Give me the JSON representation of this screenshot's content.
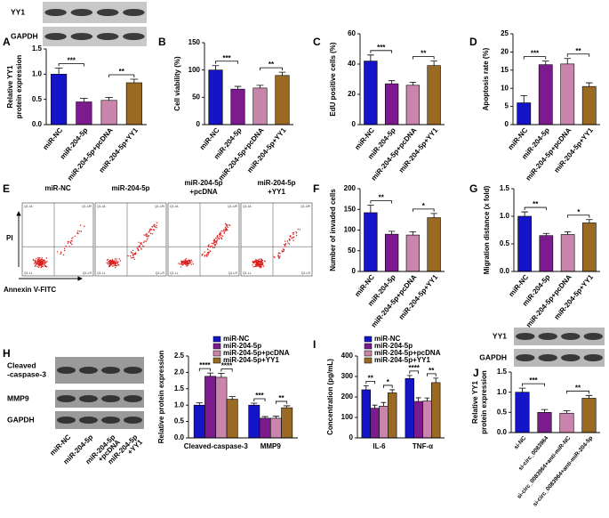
{
  "chart_data": [
    {
      "panel": "A",
      "type": "bar",
      "ylabel": [
        "Relative YY1",
        "protein expression"
      ],
      "categories": [
        "miR-NC",
        "miR-204-5p",
        "miR-204-5p+pcDNA",
        "miR-204-5p+YY1"
      ],
      "values": [
        1.0,
        0.45,
        0.48,
        0.83
      ],
      "errors": [
        0.12,
        0.07,
        0.06,
        0.07
      ],
      "colors": [
        "#1414c8",
        "#7b1b8e",
        "#c985ab",
        "#9a6a24"
      ],
      "ylim": [
        0,
        1.5
      ],
      "yticks": [
        {
          "value": 0,
          "label": "0.0"
        },
        0.5,
        {
          "value": 1,
          "label": "1.0"
        },
        1.5
      ],
      "annotations": [
        "***",
        "**"
      ]
    },
    {
      "panel": "B",
      "type": "bar",
      "ylabel": [
        "Cell viability (%)"
      ],
      "categories": [
        "miR-NC",
        "miR-204-5p",
        "miR-204-5p+pcDNA",
        "miR-204-5p+YY1"
      ],
      "values": [
        100,
        65,
        67,
        90
      ],
      "errors": [
        8,
        5,
        5,
        6
      ],
      "colors": [
        "#1414c8",
        "#7b1b8e",
        "#c985ab",
        "#9a6a24"
      ],
      "ylim": [
        0,
        150
      ],
      "yticks": [
        0,
        50,
        100,
        150
      ],
      "annotations": [
        "***",
        "**"
      ]
    },
    {
      "panel": "C",
      "type": "bar",
      "ylabel": [
        "EdU positive cells (%)"
      ],
      "categories": [
        "miR-NC",
        "miR-204-5p",
        "miR-204-5p+pcDNA",
        "miR-204-5p+YY1"
      ],
      "values": [
        42,
        27,
        26,
        39
      ],
      "errors": [
        4,
        2,
        2,
        3
      ],
      "colors": [
        "#1414c8",
        "#7b1b8e",
        "#c985ab",
        "#9a6a24"
      ],
      "ylim": [
        0,
        60
      ],
      "yticks": [
        0,
        20,
        40,
        60
      ],
      "annotations": [
        "***",
        "**"
      ]
    },
    {
      "panel": "D",
      "type": "bar",
      "ylabel": [
        "Apoptosis rate (%)"
      ],
      "categories": [
        "miR-NC",
        "miR-204-5p",
        "miR-204-5p+pcDNA",
        "miR-204-5p+YY1"
      ],
      "values": [
        6,
        16.5,
        16.7,
        10.5
      ],
      "errors": [
        2,
        1,
        1.5,
        1
      ],
      "colors": [
        "#1414c8",
        "#7b1b8e",
        "#c985ab",
        "#9a6a24"
      ],
      "ylim": [
        0,
        25
      ],
      "yticks": [
        0,
        5,
        10,
        15,
        20,
        25
      ],
      "annotations": [
        "***",
        "**"
      ]
    },
    {
      "panel": "F",
      "type": "bar",
      "ylabel": [
        "Number of invaded cells"
      ],
      "categories": [
        "miR-NC",
        "miR-204-5p",
        "miR-204-5p+pcDNA",
        "miR-204-5p+YY1"
      ],
      "values": [
        142,
        90,
        88,
        130
      ],
      "errors": [
        18,
        7,
        8,
        10
      ],
      "colors": [
        "#1414c8",
        "#7b1b8e",
        "#c985ab",
        "#9a6a24"
      ],
      "ylim": [
        0,
        200
      ],
      "yticks": [
        0,
        50,
        100,
        150,
        200
      ],
      "annotations": [
        "**",
        "*"
      ]
    },
    {
      "panel": "G",
      "type": "bar",
      "ylabel": [
        "Migration distance (x fold)"
      ],
      "categories": [
        "miR-NC",
        "miR-204-5p",
        "miR-204-5p+pcDNA",
        "miR-204-5p+YY1"
      ],
      "values": [
        1.0,
        0.65,
        0.67,
        0.88
      ],
      "errors": [
        0.08,
        0.04,
        0.05,
        0.06
      ],
      "colors": [
        "#1414c8",
        "#7b1b8e",
        "#c985ab",
        "#9a6a24"
      ],
      "ylim": [
        0,
        1.5
      ],
      "yticks": [
        {
          "value": 0,
          "label": "0.0"
        },
        0.5,
        {
          "value": 1,
          "label": "1.0"
        },
        1.5
      ],
      "annotations": [
        "**",
        "*"
      ]
    },
    {
      "panel": "H",
      "type": "bar",
      "ylabel": [
        "Relative protein expression"
      ],
      "categories": [
        "Cleaved-caspase-3",
        "MMP9"
      ],
      "series": [
        {
          "name": "miR-NC",
          "color": "#1414c8",
          "values": [
            1.0,
            1.0
          ],
          "errors": [
            0.07,
            0.06
          ]
        },
        {
          "name": "miR-204-5p",
          "color": "#7b1b8e",
          "values": [
            1.88,
            0.6
          ],
          "errors": [
            0.1,
            0.05
          ]
        },
        {
          "name": "miR-204-5p+pcDNA",
          "color": "#c985ab",
          "values": [
            1.85,
            0.6
          ],
          "errors": [
            0.12,
            0.06
          ]
        },
        {
          "name": "miR-204-5p+YY1",
          "color": "#9a6a24",
          "values": [
            1.18,
            0.92
          ],
          "errors": [
            0.08,
            0.06
          ]
        }
      ],
      "ylim": [
        0,
        2.5
      ],
      "yticks": [
        {
          "value": 0,
          "label": "0.0"
        },
        0.5,
        {
          "value": 1,
          "label": "1.0"
        },
        1.5,
        {
          "value": 2,
          "label": "2.0"
        },
        2.5
      ],
      "annotations": [
        "****",
        "****",
        "***",
        "**"
      ]
    },
    {
      "panel": "I",
      "type": "bar",
      "ylabel": [
        "Concentration (pg/mL)"
      ],
      "categories": [
        "IL-6",
        "TNF-α"
      ],
      "series": [
        {
          "name": "miR-NC",
          "color": "#1414c8",
          "values": [
            235,
            290
          ],
          "errors": [
            20,
            15
          ]
        },
        {
          "name": "miR-204-5p",
          "color": "#7b1b8e",
          "values": [
            145,
            178
          ],
          "errors": [
            15,
            18
          ]
        },
        {
          "name": "miR-204-5p+pcDNA",
          "color": "#c985ab",
          "values": [
            155,
            180
          ],
          "errors": [
            18,
            15
          ]
        },
        {
          "name": "miR-204-5p+YY1",
          "color": "#9a6a24",
          "values": [
            220,
            270
          ],
          "errors": [
            15,
            22
          ]
        }
      ],
      "ylim": [
        0,
        400
      ],
      "yticks": [
        0,
        100,
        200,
        300,
        400
      ],
      "annotations": [
        "**",
        "*",
        "****",
        "**"
      ]
    },
    {
      "panel": "J",
      "type": "bar",
      "ylabel": [
        "Relative YY1",
        "protein expression"
      ],
      "categories": [
        "si-NC",
        "si-circ_0083964",
        "si-circ_0083964+anti-miR-NC",
        "si-circ_0083964+anti-miR-204-5p"
      ],
      "values": [
        1.0,
        0.5,
        0.48,
        0.85
      ],
      "errors": [
        0.1,
        0.07,
        0.06,
        0.07
      ],
      "colors": [
        "#1414c8",
        "#7b1b8e",
        "#c985ab",
        "#9a6a24"
      ],
      "ylim": [
        0,
        1.5
      ],
      "yticks": [
        {
          "value": 0,
          "label": "0.0"
        },
        0.5,
        {
          "value": 1,
          "label": "1.0"
        },
        1.5
      ],
      "annotations": [
        "***",
        "**"
      ]
    }
  ],
  "flow": {
    "panel": "E",
    "titles": [
      [
        "miR-NC"
      ],
      [
        "miR-204-5p"
      ],
      [
        "miR-204-5p",
        "+pcDNA"
      ],
      [
        "miR-204-5p",
        "+YY1"
      ]
    ],
    "ylabel": "PI",
    "xlabel": "Annexin V-FITC",
    "quadrants": [
      "Q1-UL",
      "Q1-UR",
      "Q1-LL",
      "Q1-LR"
    ]
  },
  "blots": [
    {
      "rows": [
        [
          "YY1"
        ],
        [
          "GAPDH"
        ]
      ]
    },
    {
      "rows": [
        [
          "Cleaved",
          "-caspase-3"
        ],
        [
          "MMP9"
        ],
        [
          "GAPDH"
        ]
      ],
      "lanes": [
        [
          "miR-NC"
        ],
        [
          "miR-204-5p"
        ],
        [
          "miR-204-5p",
          "+pcDNA"
        ],
        [
          "miR-204-5p",
          "+YY1"
        ]
      ]
    },
    {
      "rows": [
        [
          "YY1"
        ],
        [
          "GAPDH"
        ]
      ]
    }
  ]
}
